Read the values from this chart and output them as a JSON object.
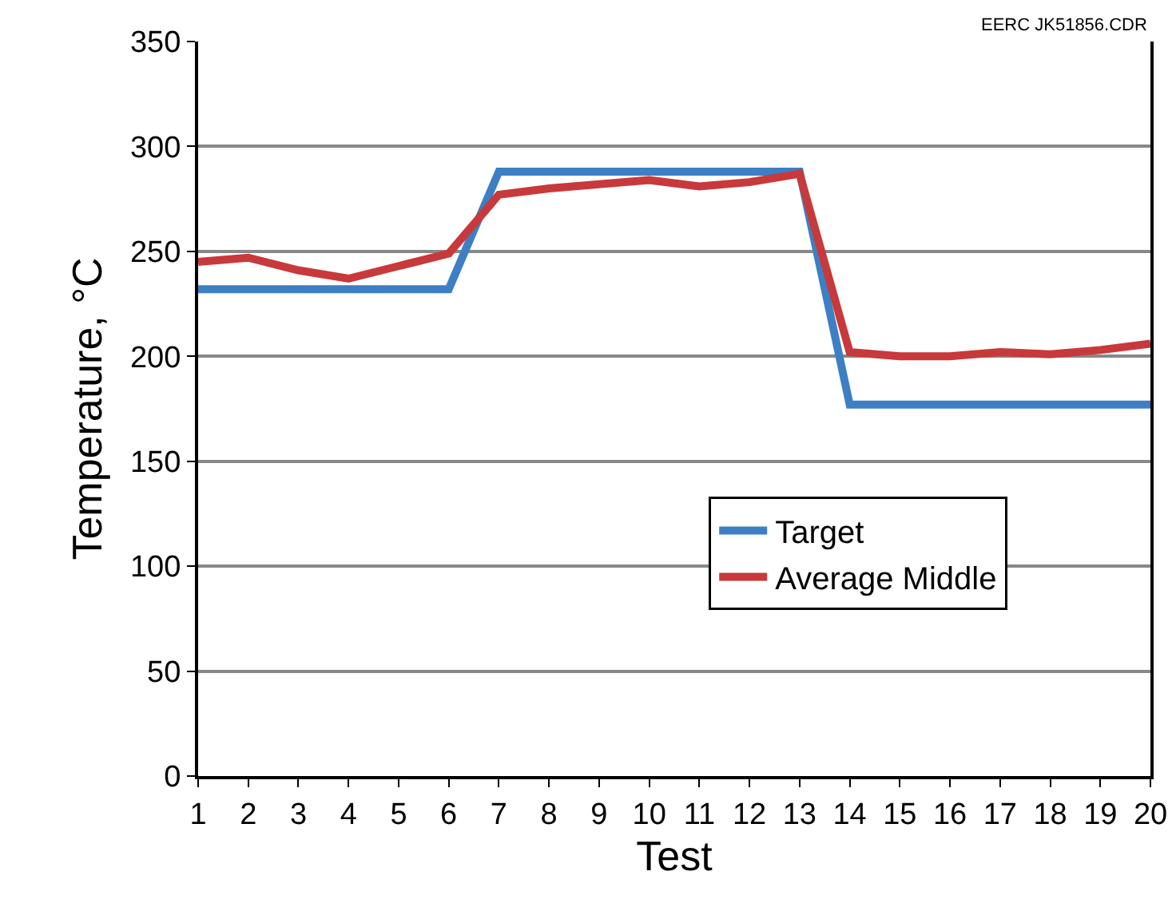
{
  "chart_data": {
    "type": "line",
    "xlabel": "Test",
    "ylabel": "Temperature, °C",
    "x": [
      1,
      2,
      3,
      4,
      5,
      6,
      7,
      8,
      9,
      10,
      11,
      12,
      13,
      14,
      15,
      16,
      17,
      18,
      19,
      20
    ],
    "series": [
      {
        "name": "Target",
        "color": "#3d7fc4",
        "values": [
          232,
          232,
          232,
          232,
          232,
          232,
          288,
          288,
          288,
          288,
          288,
          288,
          288,
          177,
          177,
          177,
          177,
          177,
          177,
          177
        ]
      },
      {
        "name": "Average Middle",
        "color": "#c8393b",
        "values": [
          245,
          247,
          241,
          237,
          243,
          249,
          277,
          280,
          282,
          284,
          281,
          283,
          287,
          202,
          200,
          200,
          202,
          201,
          203,
          206
        ]
      }
    ],
    "xlim": [
      1,
      20
    ],
    "xticks": [
      1,
      2,
      3,
      4,
      5,
      6,
      7,
      8,
      9,
      10,
      11,
      12,
      13,
      14,
      15,
      16,
      17,
      18,
      19,
      20
    ],
    "ylim": [
      0,
      350
    ],
    "yticks": [
      0,
      50,
      100,
      150,
      200,
      250,
      300,
      350
    ],
    "grid": "y",
    "legend": "center right",
    "marker": "none",
    "line_style": "solid",
    "annotations": [
      "EERC JK51856.CDR"
    ]
  }
}
